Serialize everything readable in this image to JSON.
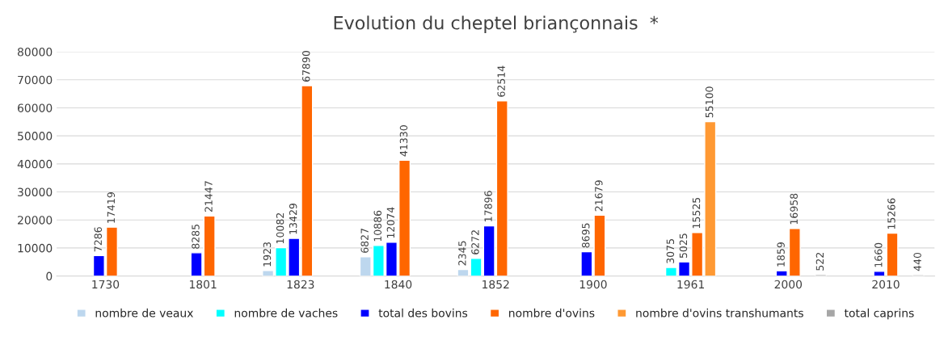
{
  "chart_data": {
    "type": "bar",
    "title": "Evolution du cheptel briançonnais  *",
    "categories": [
      "1730",
      "1801",
      "1823",
      "1840",
      "1852",
      "1900",
      "1961",
      "2000",
      "2010"
    ],
    "series": [
      {
        "name": "nombre de veaux",
        "color": "#bdd7ee",
        "values": [
          null,
          null,
          1923,
          6827,
          2345,
          null,
          null,
          null,
          null
        ]
      },
      {
        "name": "nombre de vaches",
        "color": "#00ffff",
        "values": [
          null,
          null,
          10082,
          10886,
          6272,
          null,
          3075,
          null,
          null
        ]
      },
      {
        "name": "total des bovins",
        "color": "#0000ff",
        "values": [
          7286,
          8285,
          13429,
          12074,
          17896,
          8695,
          5025,
          1859,
          1660
        ]
      },
      {
        "name": "nombre d'ovins",
        "color": "#ff6600",
        "values": [
          17419,
          21447,
          67890,
          41330,
          62514,
          21679,
          15525,
          16958,
          15266
        ]
      },
      {
        "name": "nombre d'ovins transhumants",
        "color": "#ff9933",
        "values": [
          null,
          null,
          null,
          null,
          null,
          null,
          55100,
          null,
          null
        ]
      },
      {
        "name": "total caprins",
        "color": "#a6a6a6",
        "values": [
          null,
          null,
          null,
          null,
          null,
          null,
          null,
          522,
          440
        ]
      }
    ],
    "ylim": [
      0,
      80000
    ],
    "yticks": [
      0,
      10000,
      20000,
      30000,
      40000,
      50000,
      60000,
      70000,
      80000
    ],
    "grid": "y",
    "legend": "bottom",
    "data_labels": true
  }
}
